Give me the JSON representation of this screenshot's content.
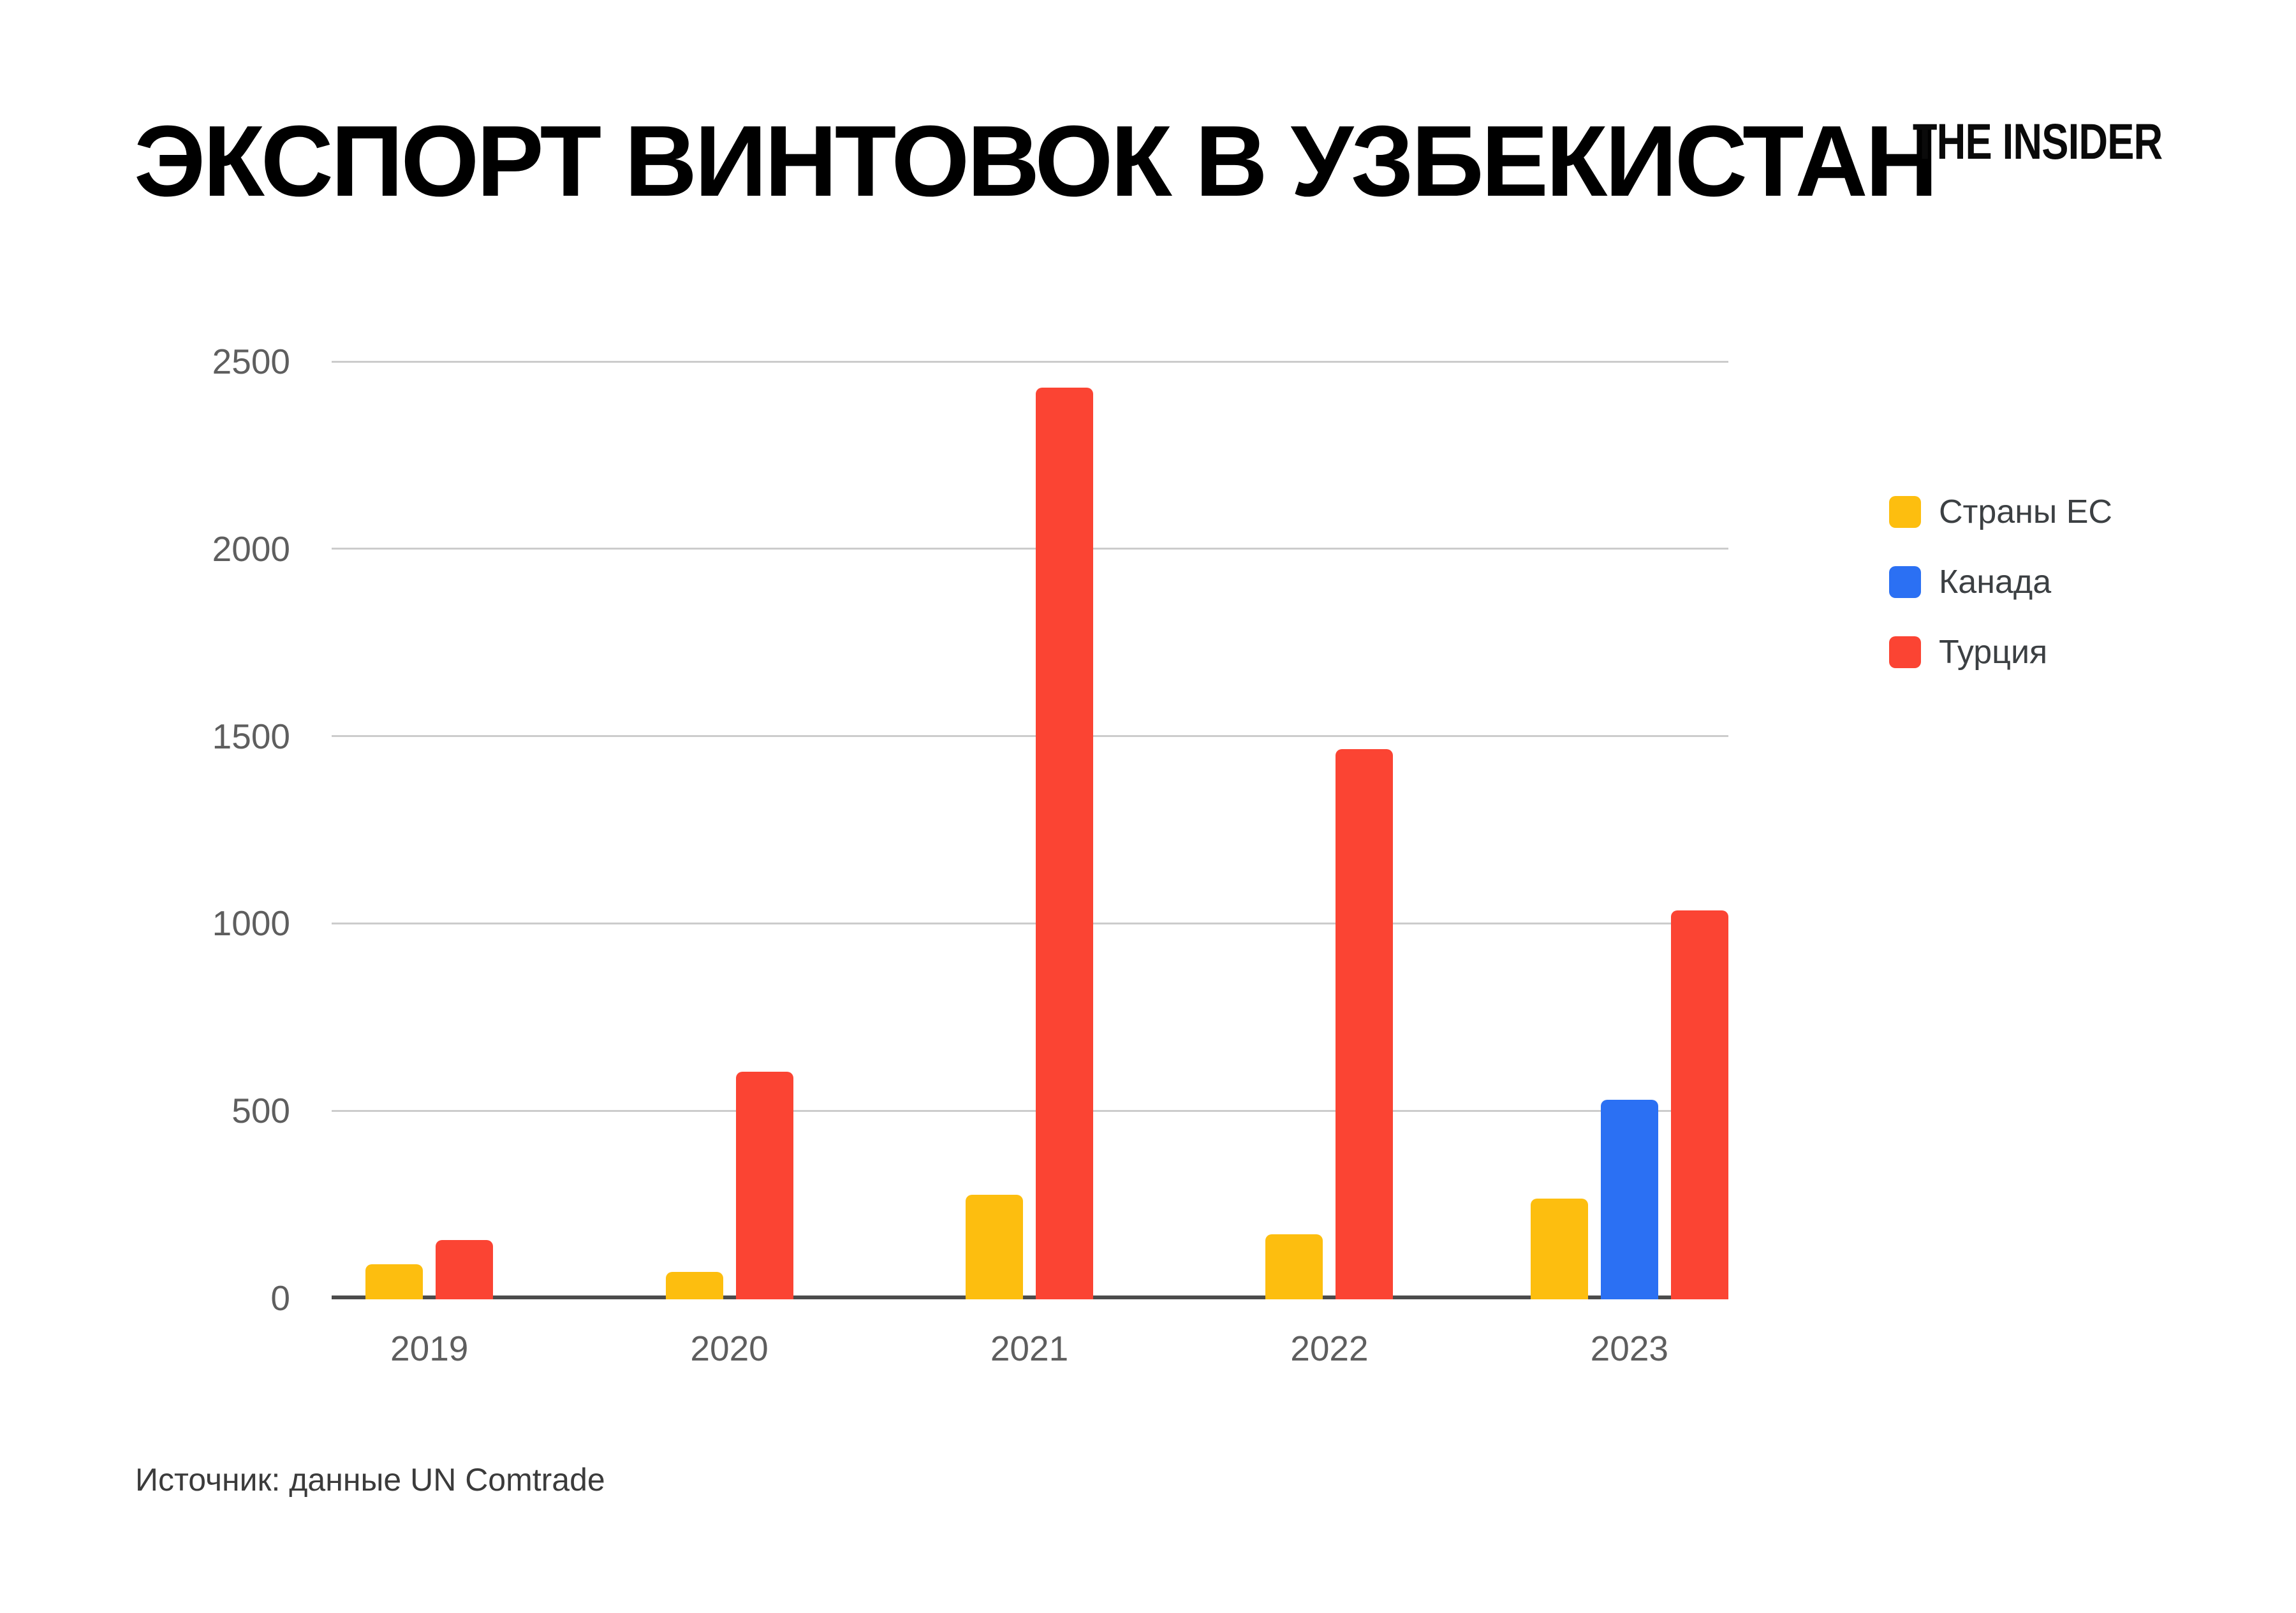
{
  "header": {
    "title": "ЭКСПОРТ ВИНТОВОК В УЗБЕКИСТАН",
    "logo": "THE INSIDER"
  },
  "legend": {
    "items": [
      {
        "label": "Страны ЕС",
        "color": "#FDBE0F"
      },
      {
        "label": "Канада",
        "color": "#2B70F3"
      },
      {
        "label": "Турция",
        "color": "#FB4433"
      }
    ]
  },
  "footer": {
    "source": "Источник: данные UN Comtrade"
  },
  "chart_data": {
    "type": "bar",
    "title": "ЭКСПОРТ ВИНТОВОК В УЗБЕКИСТАН",
    "categories": [
      "2019",
      "2020",
      "2021",
      "2022",
      "2023"
    ],
    "series": [
      {
        "name": "Страны ЕС",
        "color": "#FDBE0F",
        "values": [
          90,
          70,
          275,
          170,
          265
        ]
      },
      {
        "name": "Канада",
        "color": "#2B70F3",
        "values": [
          null,
          null,
          null,
          null,
          530
        ]
      },
      {
        "name": "Турция",
        "color": "#FB4433",
        "values": [
          155,
          605,
          2430,
          1465,
          1035
        ]
      }
    ],
    "xlabel": "",
    "ylabel": "",
    "ylim": [
      0,
      2500
    ],
    "yticks": [
      0,
      500,
      1000,
      1500,
      2000,
      2500
    ],
    "grid": "horizontal",
    "legend_position": "right",
    "source": "Источник: данные UN Comtrade"
  },
  "colors": {
    "background": "#FFFFFF",
    "title_text": "#000000",
    "gridline": "#CCCCCC",
    "axis_line": "#4B4B4B",
    "tick_label": "#5E5E5E",
    "legend_text": "#3C4043",
    "source_text": "#3B3B3B"
  }
}
